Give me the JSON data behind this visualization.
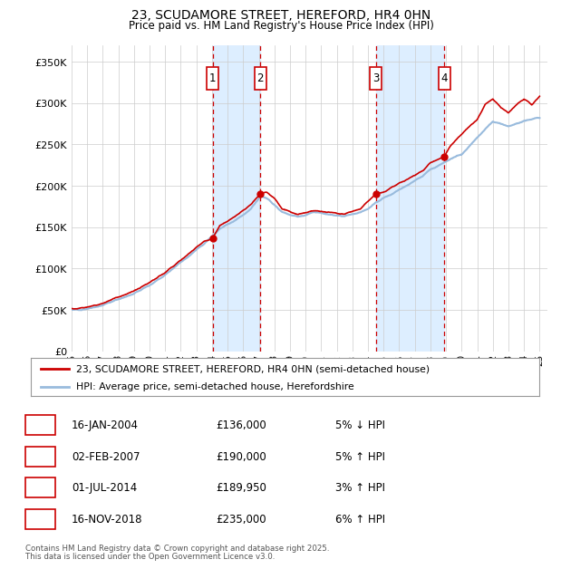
{
  "title": "23, SCUDAMORE STREET, HEREFORD, HR4 0HN",
  "subtitle": "Price paid vs. HM Land Registry's House Price Index (HPI)",
  "ylabel_ticks": [
    "£0",
    "£50K",
    "£100K",
    "£150K",
    "£200K",
    "£250K",
    "£300K",
    "£350K"
  ],
  "ytick_values": [
    0,
    50000,
    100000,
    150000,
    200000,
    250000,
    300000,
    350000
  ],
  "ylim": [
    0,
    370000
  ],
  "xlim_start": 1995.0,
  "xlim_end": 2025.5,
  "sale_markers": [
    {
      "label": "1",
      "date_num": 2004.04,
      "price": 136000,
      "date_str": "16-JAN-2004",
      "price_str": "£136,000",
      "hpi_str": "5% ↓ HPI"
    },
    {
      "label": "2",
      "date_num": 2007.09,
      "price": 190000,
      "date_str": "02-FEB-2007",
      "price_str": "£190,000",
      "hpi_str": "5% ↑ HPI"
    },
    {
      "label": "3",
      "date_num": 2014.5,
      "price": 189950,
      "date_str": "01-JUL-2014",
      "price_str": "£189,950",
      "hpi_str": "3% ↑ HPI"
    },
    {
      "label": "4",
      "date_num": 2018.88,
      "price": 235000,
      "date_str": "16-NOV-2018",
      "price_str": "£235,000",
      "hpi_str": "6% ↑ HPI"
    }
  ],
  "legend_entry1": "23, SCUDAMORE STREET, HEREFORD, HR4 0HN (semi-detached house)",
  "legend_entry2": "HPI: Average price, semi-detached house, Herefordshire",
  "footer1": "Contains HM Land Registry data © Crown copyright and database right 2025.",
  "footer2": "This data is licensed under the Open Government Licence v3.0.",
  "bg_color": "#ffffff",
  "plot_bg_color": "#ffffff",
  "grid_color": "#cccccc",
  "hpi_line_color": "#99bbdd",
  "sale_line_color": "#cc0000",
  "shade_color": "#ddeeff",
  "marker_box_color": "#cc0000",
  "xtick_years": [
    1995,
    1996,
    1997,
    1998,
    1999,
    2000,
    2001,
    2002,
    2003,
    2004,
    2005,
    2006,
    2007,
    2008,
    2009,
    2010,
    2011,
    2012,
    2013,
    2014,
    2015,
    2016,
    2017,
    2018,
    2019,
    2020,
    2021,
    2022,
    2023,
    2024,
    2025
  ]
}
